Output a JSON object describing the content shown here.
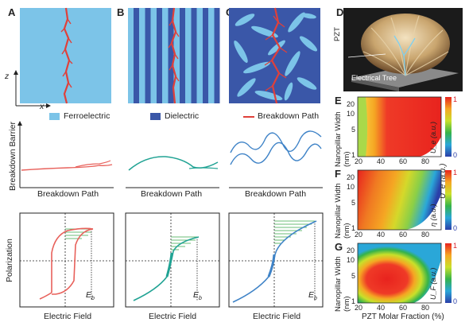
{
  "panels": {
    "a": "A",
    "b": "B",
    "c": "C",
    "d": "D",
    "e": "E",
    "f": "F",
    "g": "G"
  },
  "axes_top": {
    "z": "z",
    "x": "x"
  },
  "legend": {
    "ferroelectric": "Ferroelectric",
    "dielectric": "Dielectric",
    "breakdown_path": "Breakdown Path",
    "ferroelectric_color": "#7cc4e8",
    "dielectric_color": "#3a57a8",
    "path_color": "#e0403a"
  },
  "barrier": {
    "ylabel": "Breakdown Barrier",
    "xlabel": "Breakdown Path"
  },
  "polarization": {
    "ylabel": "Polarization",
    "xlabel": "Electric Field",
    "eb": "E",
    "eb_sub": "b"
  },
  "d_panel": {
    "pzt": "PZT",
    "tree": "Electrical Tree"
  },
  "heatmaps": {
    "ylabel": "Nanopillar Width (nm)",
    "xlabel": "PZT Molar Fraction (%)",
    "yticks": [
      "20",
      "10",
      "5",
      "1"
    ],
    "xticks": [
      "20",
      "40",
      "60",
      "80"
    ],
    "cbar_top": "1",
    "cbar_bottom": "0",
    "e_label": "U_e (a.u.)",
    "f_label": "η (a.u.)",
    "g_label": "U_F (a.u.)"
  },
  "colors": {
    "ferro_line": "#e8615b",
    "diel_line": "#21a394",
    "comp_line": "#3f83c7",
    "hatch": "#3aa64a"
  }
}
